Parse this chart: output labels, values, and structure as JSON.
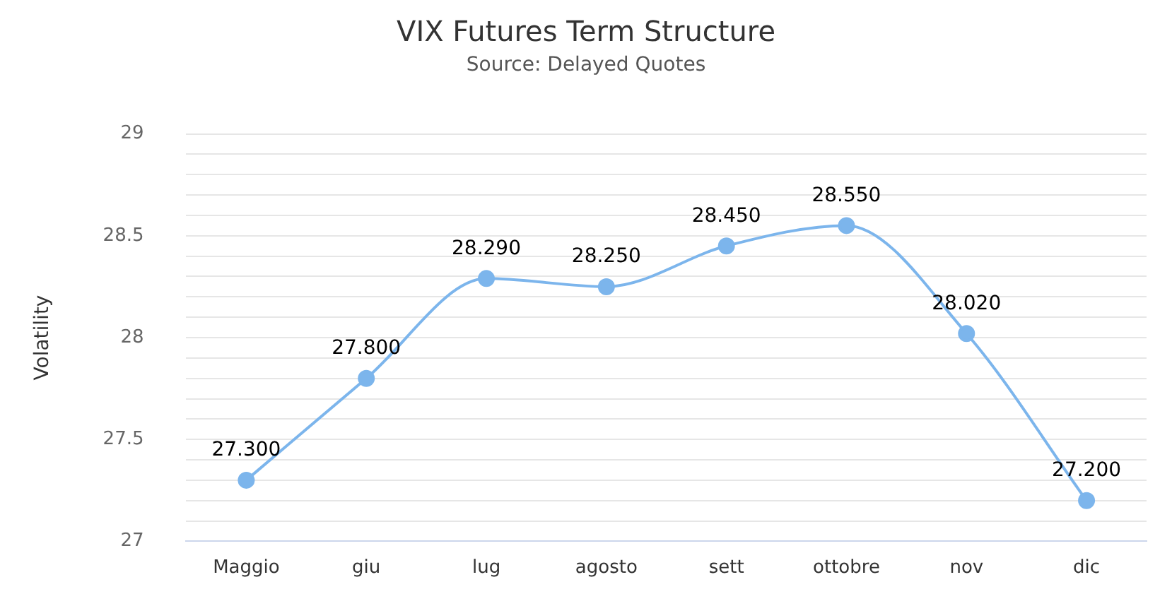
{
  "chart_data": {
    "type": "line",
    "title": "VIX Futures Term Structure",
    "subtitle": "Source: Delayed Quotes",
    "ylabel": "Volatility",
    "categories": [
      "Maggio",
      "giu",
      "lug",
      "agosto",
      "sett",
      "ottobre",
      "nov",
      "dic"
    ],
    "series": [
      {
        "color": "#7cb5ec",
        "values": [
          27.3,
          27.8,
          28.29,
          28.25,
          28.45,
          28.55,
          28.02,
          27.2
        ],
        "value_labels": [
          "27.300",
          "27.800",
          "28.290",
          "28.250",
          "28.450",
          "28.550",
          "28.020",
          "27.200"
        ]
      }
    ],
    "ylim": [
      27,
      29
    ],
    "yticks": [
      27,
      {
        "value": 27.1,
        "label": null
      },
      {
        "value": 27.2,
        "label": null
      },
      {
        "value": 27.3,
        "label": null
      },
      {
        "value": 27.4,
        "label": null
      },
      27.5,
      {
        "value": 27.6,
        "label": null
      },
      {
        "value": 27.7,
        "label": null
      },
      {
        "value": 27.8,
        "label": null
      },
      {
        "value": 27.9,
        "label": null
      },
      28,
      {
        "value": 28.1,
        "label": null
      },
      {
        "value": 28.2,
        "label": null
      },
      {
        "value": 28.3,
        "label": null
      },
      {
        "value": 28.4,
        "label": null
      },
      28.5,
      {
        "value": 28.6,
        "label": null
      },
      {
        "value": 28.7,
        "label": null
      },
      {
        "value": 28.8,
        "label": null
      },
      {
        "value": 28.9,
        "label": null
      },
      29
    ],
    "grid": "y",
    "legend": false,
    "marker": "circle",
    "line_style": "solid"
  }
}
